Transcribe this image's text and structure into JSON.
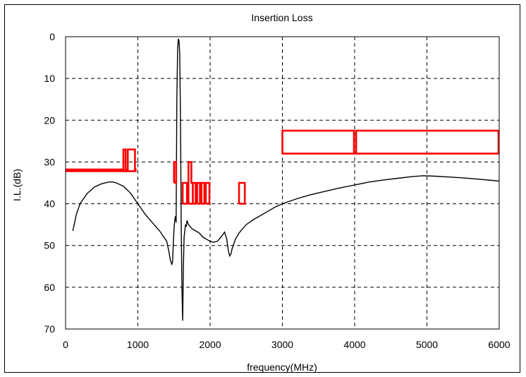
{
  "chart_data": {
    "type": "line",
    "title": "Insertion Loss",
    "xlabel": "frequency(MHz)",
    "ylabel": "I.L.(dB)",
    "xlim": [
      0,
      6000
    ],
    "ylim": [
      0,
      70
    ],
    "y_inverted": true,
    "grid": true,
    "x_ticks": [
      0,
      1000,
      2000,
      3000,
      4000,
      5000,
      6000
    ],
    "y_ticks": [
      0,
      10,
      20,
      30,
      40,
      50,
      60,
      70
    ],
    "colors": {
      "measured": "#000000",
      "spec": "#ff0000"
    },
    "series": [
      {
        "role": "measured",
        "x": [
          100,
          150,
          200,
          300,
          400,
          500,
          600,
          650,
          700,
          800,
          900,
          1000,
          1100,
          1200,
          1300,
          1400,
          1430,
          1450,
          1470,
          1480,
          1490,
          1500,
          1510,
          1520,
          1530,
          1540,
          1550,
          1560,
          1570,
          1580,
          1590,
          1600,
          1610,
          1620,
          1630,
          1640,
          1650,
          1660,
          1670,
          1680,
          1690,
          1700,
          1750,
          1800,
          1850,
          1900,
          1950,
          2000,
          2050,
          2100,
          2150,
          2200,
          2230,
          2250,
          2270,
          2290,
          2300,
          2320,
          2350,
          2400,
          2500,
          2600,
          2700,
          2800,
          2900,
          3000,
          3200,
          3400,
          3600,
          3800,
          4000,
          4200,
          4400,
          4600,
          4800,
          4950,
          5100,
          5300,
          5500,
          5700,
          5900,
          6000
        ],
        "values": [
          46.5,
          42.5,
          40.0,
          37.5,
          36.0,
          35.2,
          34.8,
          34.8,
          35.0,
          35.8,
          37.5,
          40.0,
          42.5,
          44.5,
          46.5,
          49.0,
          51.5,
          53.5,
          54.5,
          54.0,
          50.0,
          46.0,
          44.0,
          43.0,
          44.5,
          15.0,
          3.0,
          0.5,
          1.0,
          4.0,
          20.0,
          45.0,
          60.0,
          68.0,
          55.0,
          48.0,
          46.5,
          45.0,
          45.5,
          44.0,
          44.5,
          45.0,
          46.0,
          46.5,
          47.0,
          48.0,
          48.5,
          49.0,
          49.2,
          49.0,
          48.0,
          46.8,
          48.5,
          51.0,
          52.5,
          52.0,
          51.0,
          50.0,
          48.5,
          47.0,
          45.0,
          43.8,
          42.8,
          41.8,
          40.8,
          40.0,
          38.8,
          37.8,
          37.0,
          36.2,
          35.5,
          34.8,
          34.3,
          33.9,
          33.5,
          33.3,
          33.4,
          33.6,
          33.8,
          34.1,
          34.4,
          34.6
        ]
      },
      {
        "role": "spec",
        "x": [
          0,
          800,
          800,
          830,
          830,
          860,
          860,
          960,
          960,
          970,
          970,
          960,
          960,
          860,
          860,
          830,
          830,
          800,
          800,
          0
        ],
        "values": [
          31.8,
          31.8,
          27.0,
          27.0,
          31.8,
          31.8,
          27.0,
          27.0,
          31.8,
          31.8,
          32.2,
          32.2,
          32.2,
          32.2,
          32.2,
          32.2,
          32.2,
          32.2,
          32.2,
          32.2
        ]
      },
      {
        "role": "spec",
        "x": [
          2990,
          3000,
          3000,
          3990,
          3990,
          4020,
          4020,
          5990,
          5990,
          6000,
          6000,
          3000
        ],
        "values": [
          28.0,
          28.0,
          22.5,
          22.5,
          28.0,
          28.0,
          22.5,
          22.5,
          28.0,
          28.0,
          28.0,
          28.0
        ]
      },
      {
        "role": "spec",
        "x": [
          1500,
          1500,
          1530,
          1530,
          1500
        ],
        "values": [
          35.0,
          30.0,
          30.0,
          35.0,
          35.0
        ]
      },
      {
        "role": "spec",
        "x": [
          1620,
          1620,
          1680,
          1680,
          1620
        ],
        "values": [
          40.0,
          35.0,
          35.0,
          40.0,
          40.0
        ]
      },
      {
        "role": "spec",
        "x": [
          1700,
          1700,
          1740,
          1740,
          1760,
          1760,
          1700
        ],
        "values": [
          40.0,
          30.0,
          30.0,
          35.0,
          35.0,
          40.0,
          40.0
        ]
      },
      {
        "role": "spec",
        "x": [
          1760,
          1760,
          1800,
          1800,
          1760
        ],
        "values": [
          40.0,
          35.0,
          35.0,
          40.0,
          40.0
        ]
      },
      {
        "role": "spec",
        "x": [
          1820,
          1820,
          1860,
          1860,
          1820
        ],
        "values": [
          40.0,
          35.0,
          35.0,
          40.0,
          40.0
        ]
      },
      {
        "role": "spec",
        "x": [
          1880,
          1880,
          1920,
          1920,
          1880
        ],
        "values": [
          40.0,
          35.0,
          35.0,
          40.0,
          40.0
        ]
      },
      {
        "role": "spec",
        "x": [
          1940,
          1940,
          1990,
          1990,
          1940
        ],
        "values": [
          40.0,
          35.0,
          35.0,
          40.0,
          40.0
        ]
      },
      {
        "role": "spec",
        "x": [
          2400,
          2400,
          2480,
          2480,
          2400
        ],
        "values": [
          40.0,
          35.0,
          35.0,
          40.0,
          40.0
        ]
      }
    ]
  }
}
